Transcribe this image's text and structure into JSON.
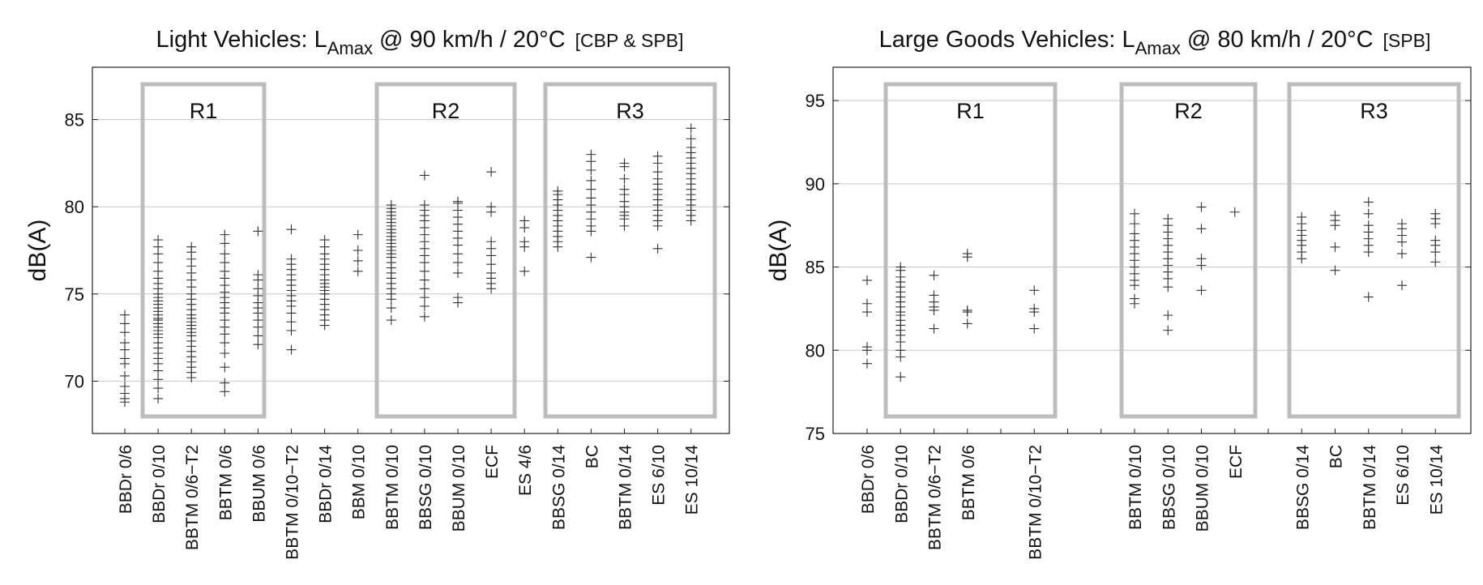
{
  "chart_data": [
    {
      "type": "scatter",
      "title": {
        "main": "Light Vehicles: L",
        "sub": "Amax",
        "rest": " @ 90 km/h / 20°C",
        "tag": "[CBP & SPB]"
      },
      "ylabel": "dB(A)",
      "ylim": [
        67,
        88
      ],
      "yticks": [
        70,
        75,
        80,
        85
      ],
      "grid": true,
      "categories": [
        "BBDr 0/6",
        "BBDr 0/10",
        "BBTM 0/6−T2",
        "BBTM 0/6",
        "BBUM 0/6",
        "BBTM 0/10−T2",
        "BBDr 0/14",
        "BBM 0/10",
        "BBTM 0/10",
        "BBSG 0/10",
        "BBUM 0/10",
        "ECF",
        "ES 4/6",
        "BBSG 0/14",
        "BC",
        "BBTM 0/14",
        "ES 6/10",
        "ES 10/14"
      ],
      "groups": [
        {
          "label": "R1",
          "from": 1,
          "to": 5
        },
        {
          "label": "R2",
          "from": 8,
          "to": 11
        },
        {
          "label": "R3",
          "from": 13,
          "to": 17
        }
      ],
      "points": [
        [
          68.8,
          69.0,
          69.3,
          69.7,
          70.3,
          71.0,
          71.3,
          71.8,
          72.2,
          72.8,
          73.3,
          73.8
        ],
        [
          69.0,
          69.6,
          70.1,
          70.6,
          71.0,
          71.3,
          71.6,
          71.9,
          72.2,
          72.5,
          72.7,
          72.9,
          73.1,
          73.3,
          73.5,
          73.6,
          73.8,
          74.0,
          74.2,
          74.4,
          74.6,
          74.8,
          75.0,
          75.3,
          75.6,
          75.9,
          76.3,
          76.8,
          77.3,
          77.7,
          78.1
        ],
        [
          70.2,
          70.5,
          70.8,
          71.1,
          71.4,
          71.7,
          72.0,
          72.3,
          72.6,
          72.8,
          73.0,
          73.2,
          73.4,
          73.6,
          73.8,
          74.1,
          74.4,
          74.7,
          75.0,
          75.4,
          75.8,
          76.2,
          76.6,
          77.0,
          77.4,
          77.7
        ],
        [
          69.4,
          69.9,
          70.8,
          71.6,
          72.2,
          72.7,
          73.1,
          73.5,
          73.9,
          74.2,
          74.5,
          74.8,
          75.1,
          75.5,
          75.9,
          76.3,
          76.8,
          77.3,
          77.9,
          78.4
        ],
        [
          72.1,
          72.6,
          73.1,
          73.5,
          73.9,
          74.2,
          74.5,
          74.9,
          75.3,
          75.8,
          76.1,
          78.6
        ],
        [
          71.8,
          72.9,
          73.4,
          73.9,
          74.3,
          74.6,
          74.9,
          75.2,
          75.5,
          75.8,
          76.1,
          76.4,
          76.7,
          77.0,
          78.7
        ],
        [
          73.2,
          73.5,
          73.8,
          74.1,
          74.4,
          74.7,
          75.0,
          75.2,
          75.4,
          75.6,
          75.8,
          76.1,
          76.4,
          76.7,
          77.0,
          77.3,
          77.7,
          78.1
        ],
        [
          76.3,
          76.9,
          77.5,
          78.4
        ],
        [
          73.5,
          74.2,
          74.7,
          75.0,
          75.3,
          75.6,
          75.9,
          76.2,
          76.5,
          76.8,
          77.1,
          77.3,
          77.5,
          77.7,
          77.9,
          78.1,
          78.3,
          78.5,
          78.7,
          78.9,
          79.1,
          79.3,
          79.5,
          79.7,
          79.9,
          80.1
        ],
        [
          73.7,
          74.3,
          74.8,
          75.3,
          75.8,
          76.3,
          76.8,
          77.2,
          77.6,
          78.0,
          78.4,
          78.8,
          79.2,
          79.5,
          79.8,
          80.1,
          81.8
        ],
        [
          74.5,
          74.8,
          76.2,
          76.8,
          77.3,
          77.8,
          78.2,
          78.6,
          79.0,
          79.4,
          79.8,
          80.2,
          80.3
        ],
        [
          75.3,
          75.6,
          75.9,
          76.2,
          76.7,
          77.2,
          77.6,
          78.0,
          79.7,
          80.0,
          82.0
        ],
        [
          76.3,
          77.7,
          78.0,
          78.8,
          79.2
        ],
        [
          77.7,
          78.0,
          78.3,
          78.6,
          78.9,
          79.2,
          79.5,
          79.8,
          80.1,
          80.4,
          80.7,
          80.9
        ],
        [
          77.1,
          78.6,
          78.9,
          79.3,
          79.7,
          80.1,
          80.5,
          81.0,
          81.5,
          82.1,
          82.6,
          83.0
        ],
        [
          78.9,
          79.3,
          79.5,
          79.7,
          80.0,
          80.3,
          80.7,
          81.0,
          81.6,
          82.3,
          82.5
        ],
        [
          77.6,
          78.9,
          79.2,
          79.5,
          79.8,
          80.1,
          80.4,
          80.7,
          81.0,
          81.3,
          81.6,
          82.0,
          82.5,
          82.9
        ],
        [
          79.2,
          79.5,
          79.8,
          80.1,
          80.4,
          80.7,
          81.0,
          81.3,
          81.6,
          81.9,
          82.2,
          82.5,
          82.8,
          83.1,
          83.4,
          83.9,
          84.5
        ]
      ]
    },
    {
      "type": "scatter",
      "title": {
        "main": "Large Goods Vehicles: L",
        "sub": "Amax",
        "rest": " @ 80 km/h / 20°C",
        "tag": "[SPB]"
      },
      "ylabel": "dB(A)",
      "ylim": [
        75,
        97
      ],
      "yticks": [
        75,
        80,
        85,
        90,
        95
      ],
      "grid": true,
      "categories": [
        "BBDr 0/6",
        "BBDr 0/10",
        "BBTM 0/6−T2",
        "BBTM 0/6",
        "",
        "BBTM 0/10−T2",
        "",
        "",
        "BBTM 0/10",
        "BBSG 0/10",
        "BBUM 0/10",
        "ECF",
        "",
        "BBSG 0/14",
        "BC",
        "BBTM 0/14",
        "ES 6/10",
        "ES 10/14"
      ],
      "groups": [
        {
          "label": "R1",
          "from": 1,
          "to": 5
        },
        {
          "label": "R2",
          "from": 8,
          "to": 11
        },
        {
          "label": "R3",
          "from": 13,
          "to": 17
        }
      ],
      "points": [
        [
          79.2,
          80.0,
          80.2,
          82.3,
          82.8,
          84.2
        ],
        [
          78.4,
          79.6,
          80.0,
          80.5,
          80.9,
          81.2,
          81.5,
          81.8,
          82.1,
          82.3,
          82.6,
          82.9,
          83.2,
          83.5,
          83.8,
          84.1,
          84.4,
          84.8,
          85.0
        ],
        [
          81.3,
          82.4,
          82.6,
          82.9,
          83.3,
          84.5
        ],
        [
          81.6,
          82.3,
          82.4,
          85.6,
          85.8
        ],
        [],
        [
          81.3,
          82.3,
          82.5,
          83.6
        ],
        [],
        [],
        [
          82.8,
          83.1,
          83.9,
          84.2,
          84.6,
          85.0,
          85.4,
          85.8,
          86.2,
          86.6,
          87.0,
          87.6,
          88.2
        ],
        [
          81.2,
          82.1,
          83.8,
          84.3,
          84.7,
          85.1,
          85.5,
          85.9,
          86.3,
          86.7,
          87.1,
          87.5,
          87.9
        ],
        [
          83.6,
          85.1,
          85.5,
          87.3,
          88.6
        ],
        [
          88.3
        ],
        [],
        [
          85.5,
          85.9,
          86.3,
          86.6,
          86.9,
          87.2,
          87.6,
          88.0
        ],
        [
          84.8,
          86.2,
          87.5,
          87.8,
          88.1
        ],
        [
          83.2,
          85.9,
          86.3,
          86.7,
          87.1,
          87.5,
          88.2,
          88.9
        ],
        [
          83.9,
          85.8,
          86.5,
          86.9,
          87.3,
          87.6
        ],
        [
          85.3,
          85.9,
          86.3,
          86.6,
          87.6,
          87.9,
          88.2
        ]
      ]
    }
  ]
}
